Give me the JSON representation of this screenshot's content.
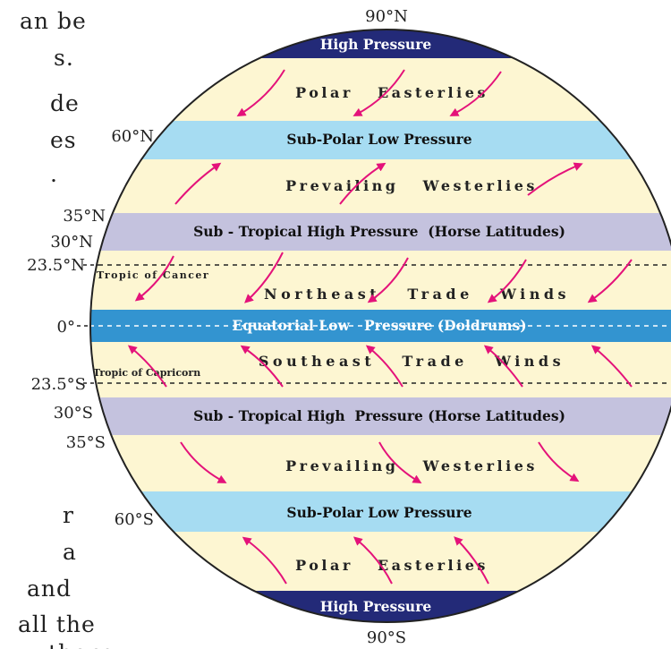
{
  "colors": {
    "cream": "#fdf6d2",
    "high_pressure": "#232a78",
    "sub_polar": "#a6dcf2",
    "sub_tropical": "#c4c2de",
    "equatorial": "#3394d0",
    "arrow": "#e4127a",
    "outline": "#222222"
  },
  "page_text": [
    "an be",
    "s.",
    "de",
    "es",
    ".",
    "r",
    "a",
    "and",
    "all the",
    "thern"
  ],
  "latitudes": {
    "n90": "90°N",
    "n60": "60°N",
    "n35": "35°N",
    "n30": "30°N",
    "n23": "23.5°N",
    "eq": "0°",
    "s23": "23.5°S",
    "s30": "30°S",
    "s35": "35°S",
    "s60": "60°S",
    "s90": "90°S"
  },
  "pressure_belts": {
    "north_high": "High Pressure",
    "north_subpolar": "Sub-Polar Low Pressure",
    "north_subtropical": "Sub - Tropical High Pressure  (Horse Latitudes)",
    "equatorial": "Equatorial Low   Pressure (Doldrums)",
    "south_subtropical": "Sub - Tropical High  Pressure (Horse Latitudes)",
    "south_subpolar": "Sub-Polar Low Pressure",
    "south_high": "High Pressure"
  },
  "winds": {
    "north_polar": "Polar   Easterlies",
    "north_westerlies": "Prevailing   Westerlies",
    "northeast_trade": "Northeast   Trade   Winds",
    "southeast_trade": "Southeast   Trade   Winds",
    "south_westerlies": "Prevailing   Westerlies",
    "south_polar": "Polar   Easterlies"
  },
  "tropics": {
    "cancer": "Tropic of Cancer",
    "capricorn": "Tropic of Capricorn"
  }
}
